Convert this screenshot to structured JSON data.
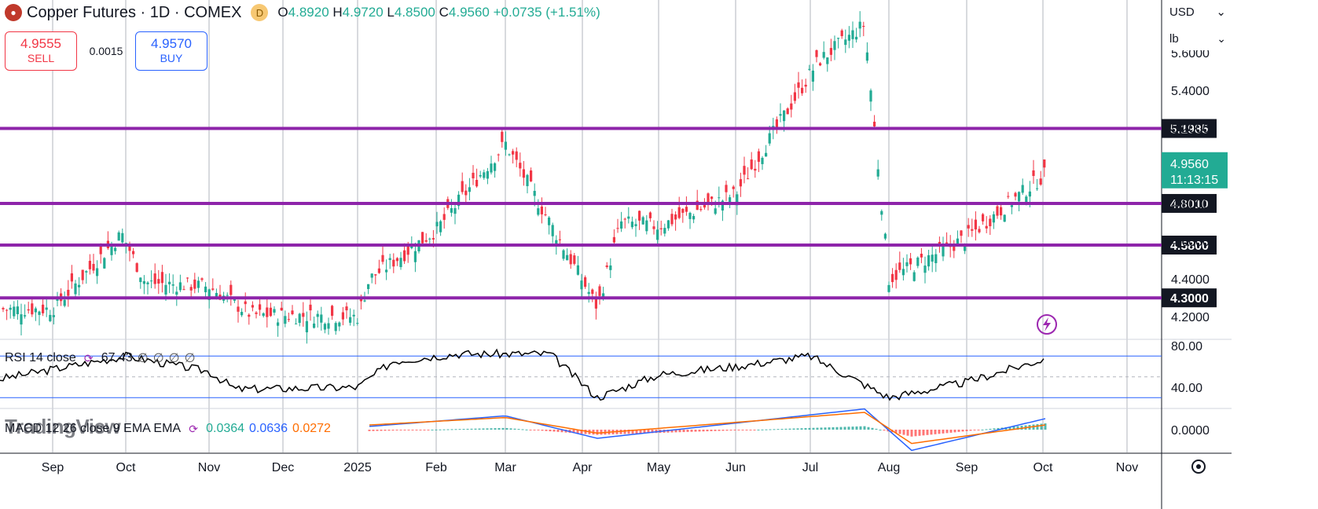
{
  "header": {
    "title": "Copper Futures · 1D · COMEX",
    "badge": "D",
    "open_key": "O",
    "open": "4.8920",
    "high_key": "H",
    "high": "4.9720",
    "low_key": "L",
    "low": "4.8500",
    "close_key": "C",
    "close": "4.9560",
    "change": "+0.0735 (+1.51%)"
  },
  "trade": {
    "sell_price": "4.9555",
    "sell_label": "SELL",
    "spread": "0.0015",
    "buy_price": "4.9570",
    "buy_label": "BUY"
  },
  "currency": "USD",
  "unit": "lb",
  "watermark": "TradingView",
  "colors": {
    "up": "#22ab94",
    "down": "#f23645",
    "level": "#8e24aa",
    "rsi": "#000000",
    "macd": "#2962ff",
    "signal": "#ff6d00",
    "grid": "#b2b5be"
  },
  "rsi": {
    "label": "RSI 14 close",
    "value": "67.43",
    "extras": [
      "∅",
      "∅",
      "∅",
      "∅"
    ]
  },
  "macd": {
    "label": "MACD 12 26 close 9 EMA EMA",
    "hist": "0.0364",
    "macd": "0.0636",
    "signal": "0.0272"
  },
  "chart_data": [
    {
      "type": "candlestick",
      "title": "Copper Futures · 1D · COMEX",
      "x_labels": [
        "Sep",
        "Oct",
        "Nov",
        "Dec",
        "2025",
        "Feb",
        "Mar",
        "Apr",
        "May",
        "Jun",
        "Jul",
        "Aug",
        "Sep",
        "Oct",
        "Nov"
      ],
      "y_ticks": [
        4.2,
        4.4,
        4.6,
        4.8,
        5.0,
        5.2,
        5.4,
        5.6
      ],
      "ylim": [
        4.08,
        5.88
      ],
      "horizontal_levels": [
        5.1985,
        4.801,
        4.58,
        4.3
      ],
      "level_labels": [
        "5.1985",
        "4.8010",
        "4.5800",
        "4.3000"
      ],
      "last_price": "4.9560",
      "countdown": "11:13:15",
      "monthly_path": [
        {
          "month": "Sep",
          "close": 4.24
        },
        {
          "month": "Oct",
          "close": 4.64
        },
        {
          "month": "Oct",
          "close": 4.38
        },
        {
          "month": "Nov",
          "close": 4.36
        },
        {
          "month": "Dec",
          "close": 4.21
        },
        {
          "month": "2025",
          "close": 4.2
        },
        {
          "month": "Jan",
          "close": 4.4
        },
        {
          "month": "Feb",
          "close": 4.66
        },
        {
          "month": "Mar",
          "close": 5.12
        },
        {
          "month": "Apr",
          "close": 4.25
        },
        {
          "month": "Apr",
          "close": 4.7
        },
        {
          "month": "May",
          "close": 4.68
        },
        {
          "month": "Jun",
          "close": 4.85
        },
        {
          "month": "Jul",
          "close": 5.55
        },
        {
          "month": "Jul",
          "close": 5.75
        },
        {
          "month": "Aug",
          "close": 4.4
        },
        {
          "month": "Sep",
          "close": 4.62
        },
        {
          "month": "Oct",
          "close": 4.956
        }
      ]
    },
    {
      "type": "line",
      "title": "RSI 14 close",
      "y_ticks": [
        40.0,
        80.0
      ],
      "bands": [
        70,
        30
      ],
      "mid": 50,
      "last_value": 67.43,
      "key_points": [
        {
          "month": "Sep",
          "value": 48
        },
        {
          "month": "Oct",
          "value": 70
        },
        {
          "month": "Nov",
          "value": 55
        },
        {
          "month": "Dec",
          "value": 38
        },
        {
          "month": "2025",
          "value": 40
        },
        {
          "month": "Jan",
          "value": 65
        },
        {
          "month": "Feb",
          "value": 72
        },
        {
          "month": "Mar",
          "value": 72
        },
        {
          "month": "Apr",
          "value": 30
        },
        {
          "month": "May",
          "value": 52
        },
        {
          "month": "Jun",
          "value": 60
        },
        {
          "month": "Jul",
          "value": 70
        },
        {
          "month": "Aug",
          "value": 30
        },
        {
          "month": "Sep",
          "value": 45
        },
        {
          "month": "Oct",
          "value": 67.43
        }
      ]
    },
    {
      "type": "bar+line",
      "title": "MACD 12 26 close 9 EMA EMA",
      "y_ticks": [
        0.0
      ],
      "series": [
        {
          "name": "Histogram",
          "last": 0.0364
        },
        {
          "name": "MACD",
          "last": 0.0636
        },
        {
          "name": "Signal",
          "last": 0.0272
        }
      ],
      "key_points": [
        {
          "month": "Oct",
          "macd": 0.06,
          "signal": 0.05
        },
        {
          "month": "Dec",
          "macd": -0.02,
          "signal": 0.0
        },
        {
          "month": "Mar",
          "macd": 0.08,
          "signal": 0.07
        },
        {
          "month": "Apr",
          "macd": -0.05,
          "signal": -0.02
        },
        {
          "month": "Jul",
          "macd": 0.12,
          "signal": 0.1
        },
        {
          "month": "Aug",
          "macd": -0.12,
          "signal": -0.08
        },
        {
          "month": "Oct",
          "macd": 0.0636,
          "signal": 0.0272
        }
      ]
    }
  ]
}
